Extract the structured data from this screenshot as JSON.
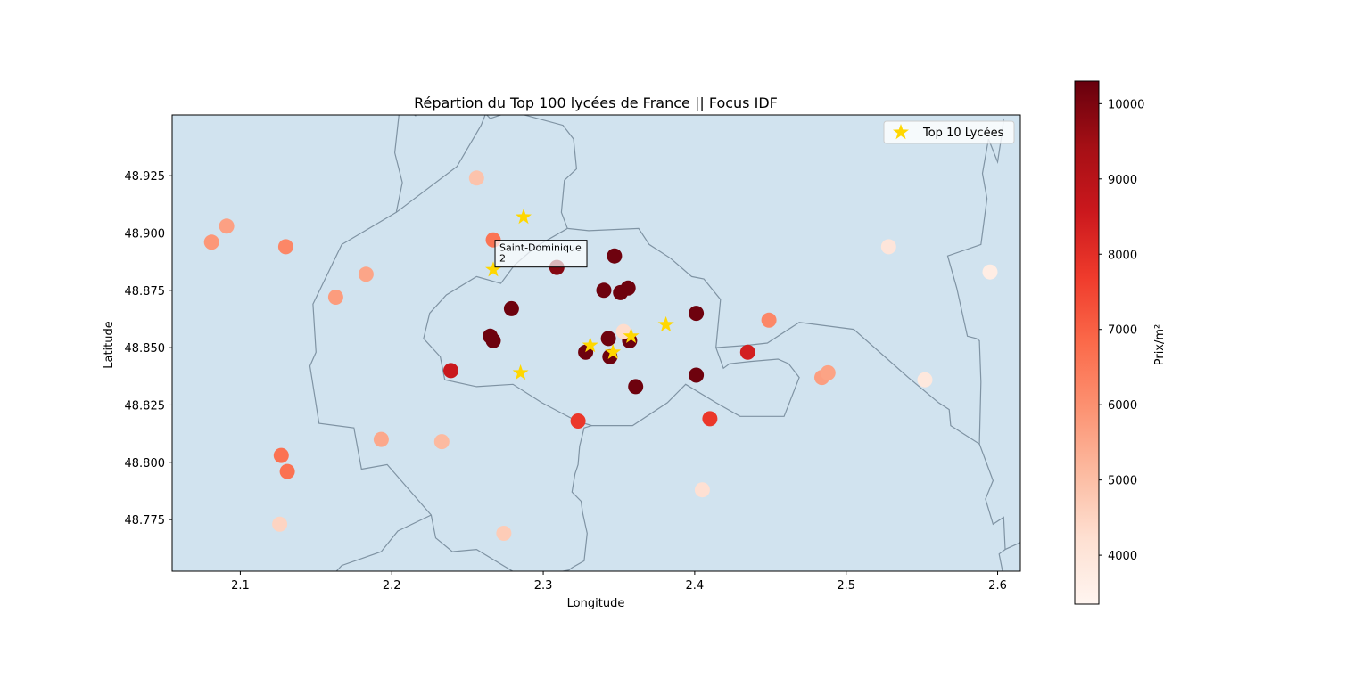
{
  "chart_data": {
    "type": "scatter",
    "title": "Répartion du Top 100 lycées de France || Focus IDF",
    "xlabel": "Longitude",
    "ylabel": "Latitude",
    "xlim": [
      2.055,
      2.615
    ],
    "ylim": [
      48.7525,
      48.9515
    ],
    "x_ticks": [
      2.1,
      2.2,
      2.3,
      2.4,
      2.5,
      2.6
    ],
    "y_ticks": [
      48.775,
      48.8,
      48.825,
      48.85,
      48.875,
      48.9,
      48.925
    ],
    "x_tick_labels": [
      "2.1",
      "2.2",
      "2.3",
      "2.4",
      "2.5",
      "2.6"
    ],
    "y_tick_labels": [
      "48.775",
      "48.800",
      "48.825",
      "48.850",
      "48.875",
      "48.900",
      "48.925"
    ],
    "grid": false,
    "legend": {
      "position": "top-right",
      "entries": [
        "Top 10 Lycées"
      ]
    },
    "colorbar": {
      "label": "Prix/m²",
      "range": [
        3350,
        10300
      ],
      "ticks": [
        4000,
        5000,
        6000,
        7000,
        8000,
        9000,
        10000
      ],
      "tick_labels": [
        "4000",
        "5000",
        "6000",
        "7000",
        "8000",
        "9000",
        "10000"
      ],
      "colormap": "Reds"
    },
    "colors": {
      "map_fill": "#d1e3ef",
      "boundary": "#7f93a3",
      "star": "#ffd700"
    },
    "annotation": {
      "line1": "Saint-Dominique",
      "line2": "2",
      "x": 2.267,
      "y": 48.884
    },
    "boundaries": [
      [
        [
          2.205,
          48.953
        ],
        [
          2.212,
          48.952
        ],
        [
          2.214,
          48.952
        ],
        [
          2.216,
          48.951
        ]
      ],
      [
        [
          2.205,
          48.953
        ],
        [
          2.202,
          48.935
        ],
        [
          2.207,
          48.922
        ],
        [
          2.203,
          48.909
        ],
        [
          2.167,
          48.895
        ],
        [
          2.148,
          48.869
        ],
        [
          2.15,
          48.848
        ],
        [
          2.146,
          48.842
        ],
        [
          2.152,
          48.817
        ],
        [
          2.175,
          48.815
        ],
        [
          2.18,
          48.797
        ],
        [
          2.197,
          48.799
        ],
        [
          2.226,
          48.777
        ],
        [
          2.229,
          48.767
        ],
        [
          2.24,
          48.761
        ],
        [
          2.256,
          48.762
        ],
        [
          2.281,
          48.752
        ]
      ],
      [
        [
          2.226,
          48.777
        ],
        [
          2.204,
          48.77
        ],
        [
          2.193,
          48.761
        ],
        [
          2.167,
          48.755
        ],
        [
          2.16,
          48.75
        ]
      ],
      [
        [
          2.262,
          48.952
        ],
        [
          2.265,
          48.95
        ],
        [
          2.279,
          48.953
        ],
        [
          2.313,
          48.947
        ],
        [
          2.32,
          48.941
        ],
        [
          2.322,
          48.928
        ],
        [
          2.314,
          48.923
        ],
        [
          2.312,
          48.909
        ],
        [
          2.316,
          48.902
        ]
      ],
      [
        [
          2.203,
          48.909
        ],
        [
          2.243,
          48.929
        ],
        [
          2.259,
          48.947
        ],
        [
          2.262,
          48.952
        ]
      ],
      [
        [
          2.316,
          48.902
        ],
        [
          2.33,
          48.901
        ],
        [
          2.363,
          48.902
        ],
        [
          2.37,
          48.895
        ],
        [
          2.384,
          48.889
        ],
        [
          2.398,
          48.881
        ],
        [
          2.406,
          48.88
        ],
        [
          2.417,
          48.871
        ],
        [
          2.414,
          48.85
        ],
        [
          2.434,
          48.851
        ]
      ],
      [
        [
          2.316,
          48.902
        ],
        [
          2.295,
          48.894
        ],
        [
          2.281,
          48.886
        ],
        [
          2.272,
          48.878
        ],
        [
          2.256,
          48.881
        ],
        [
          2.236,
          48.873
        ],
        [
          2.225,
          48.865
        ],
        [
          2.221,
          48.854
        ],
        [
          2.232,
          48.846
        ],
        [
          2.235,
          48.836
        ],
        [
          2.256,
          48.833
        ],
        [
          2.28,
          48.834
        ],
        [
          2.299,
          48.826
        ],
        [
          2.322,
          48.818
        ],
        [
          2.332,
          48.816
        ],
        [
          2.359,
          48.816
        ],
        [
          2.382,
          48.826
        ],
        [
          2.394,
          48.834
        ],
        [
          2.414,
          48.826
        ],
        [
          2.43,
          48.82
        ],
        [
          2.459,
          48.82
        ],
        [
          2.469,
          48.837
        ],
        [
          2.462,
          48.843
        ],
        [
          2.455,
          48.845
        ],
        [
          2.437,
          48.844
        ],
        [
          2.423,
          48.843
        ],
        [
          2.419,
          48.841
        ],
        [
          2.414,
          48.85
        ]
      ],
      [
        [
          2.434,
          48.851
        ],
        [
          2.448,
          48.852
        ],
        [
          2.469,
          48.861
        ],
        [
          2.505,
          48.858
        ],
        [
          2.541,
          48.837
        ],
        [
          2.561,
          48.826
        ],
        [
          2.568,
          48.823
        ],
        [
          2.569,
          48.816
        ],
        [
          2.588,
          48.808
        ],
        [
          2.589,
          48.835
        ],
        [
          2.588,
          48.853
        ],
        [
          2.586,
          48.854
        ],
        [
          2.58,
          48.855
        ],
        [
          2.573,
          48.876
        ],
        [
          2.567,
          48.89
        ],
        [
          2.589,
          48.895
        ],
        [
          2.593,
          48.915
        ],
        [
          2.59,
          48.926
        ],
        [
          2.594,
          48.941
        ]
      ],
      [
        [
          2.594,
          48.941
        ],
        [
          2.6,
          48.931
        ],
        [
          2.603,
          48.944
        ],
        [
          2.604,
          48.95
        ]
      ],
      [
        [
          2.588,
          48.808
        ],
        [
          2.597,
          48.792
        ],
        [
          2.592,
          48.784
        ],
        [
          2.597,
          48.773
        ],
        [
          2.604,
          48.776
        ],
        [
          2.605,
          48.762
        ],
        [
          2.615,
          48.765
        ]
      ],
      [
        [
          2.604,
          48.75
        ],
        [
          2.601,
          48.76
        ],
        [
          2.605,
          48.762
        ]
      ],
      [
        [
          2.309,
          48.752
        ],
        [
          2.317,
          48.753
        ],
        [
          2.319,
          48.754
        ],
        [
          2.327,
          48.757
        ],
        [
          2.329,
          48.769
        ],
        [
          2.326,
          48.778
        ],
        [
          2.325,
          48.783
        ],
        [
          2.319,
          48.787
        ],
        [
          2.321,
          48.795
        ],
        [
          2.323,
          48.799
        ],
        [
          2.324,
          48.807
        ],
        [
          2.327,
          48.815
        ],
        [
          2.332,
          48.816
        ]
      ]
    ],
    "series": [
      {
        "name": "",
        "marker": "circle",
        "points": [
          {
            "x": 2.081,
            "y": 48.896,
            "c": 5850
          },
          {
            "x": 2.091,
            "y": 48.903,
            "c": 5650
          },
          {
            "x": 2.13,
            "y": 48.894,
            "c": 6200
          },
          {
            "x": 2.256,
            "y": 48.924,
            "c": 4900
          },
          {
            "x": 2.267,
            "y": 48.897,
            "c": 6600
          },
          {
            "x": 2.183,
            "y": 48.882,
            "c": 5550
          },
          {
            "x": 2.163,
            "y": 48.872,
            "c": 5750
          },
          {
            "x": 2.309,
            "y": 48.885,
            "c": 9900
          },
          {
            "x": 2.347,
            "y": 48.89,
            "c": 10200
          },
          {
            "x": 2.34,
            "y": 48.875,
            "c": 10200
          },
          {
            "x": 2.351,
            "y": 48.874,
            "c": 10200
          },
          {
            "x": 2.356,
            "y": 48.876,
            "c": 10200
          },
          {
            "x": 2.279,
            "y": 48.867,
            "c": 10200
          },
          {
            "x": 2.401,
            "y": 48.865,
            "c": 10200
          },
          {
            "x": 2.449,
            "y": 48.862,
            "c": 6200
          },
          {
            "x": 2.265,
            "y": 48.855,
            "c": 10200
          },
          {
            "x": 2.267,
            "y": 48.853,
            "c": 10200
          },
          {
            "x": 2.343,
            "y": 48.854,
            "c": 10200
          },
          {
            "x": 2.357,
            "y": 48.853,
            "c": 10200
          },
          {
            "x": 2.328,
            "y": 48.848,
            "c": 10200
          },
          {
            "x": 2.344,
            "y": 48.846,
            "c": 10200
          },
          {
            "x": 2.353,
            "y": 48.857,
            "c": 4300
          },
          {
            "x": 2.435,
            "y": 48.848,
            "c": 8400
          },
          {
            "x": 2.239,
            "y": 48.84,
            "c": 8600
          },
          {
            "x": 2.401,
            "y": 48.838,
            "c": 10200
          },
          {
            "x": 2.361,
            "y": 48.833,
            "c": 10200
          },
          {
            "x": 2.484,
            "y": 48.837,
            "c": 5700
          },
          {
            "x": 2.488,
            "y": 48.839,
            "c": 5600
          },
          {
            "x": 2.323,
            "y": 48.818,
            "c": 7800
          },
          {
            "x": 2.41,
            "y": 48.819,
            "c": 7800
          },
          {
            "x": 2.193,
            "y": 48.81,
            "c": 5500
          },
          {
            "x": 2.233,
            "y": 48.809,
            "c": 5100
          },
          {
            "x": 2.127,
            "y": 48.803,
            "c": 6650
          },
          {
            "x": 2.131,
            "y": 48.796,
            "c": 6650
          },
          {
            "x": 2.405,
            "y": 48.788,
            "c": 4200
          },
          {
            "x": 2.126,
            "y": 48.773,
            "c": 4500
          },
          {
            "x": 2.274,
            "y": 48.769,
            "c": 4700
          },
          {
            "x": 2.528,
            "y": 48.894,
            "c": 4000
          },
          {
            "x": 2.595,
            "y": 48.883,
            "c": 3700
          },
          {
            "x": 2.552,
            "y": 48.836,
            "c": 3900
          }
        ]
      },
      {
        "name": "Top 10 Lycées",
        "marker": "star",
        "points": [
          {
            "x": 2.287,
            "y": 48.907
          },
          {
            "x": 2.267,
            "y": 48.884
          },
          {
            "x": 2.381,
            "y": 48.86
          },
          {
            "x": 2.285,
            "y": 48.839
          },
          {
            "x": 2.331,
            "y": 48.851
          },
          {
            "x": 2.346,
            "y": 48.848
          },
          {
            "x": 2.358,
            "y": 48.855
          }
        ]
      }
    ]
  }
}
